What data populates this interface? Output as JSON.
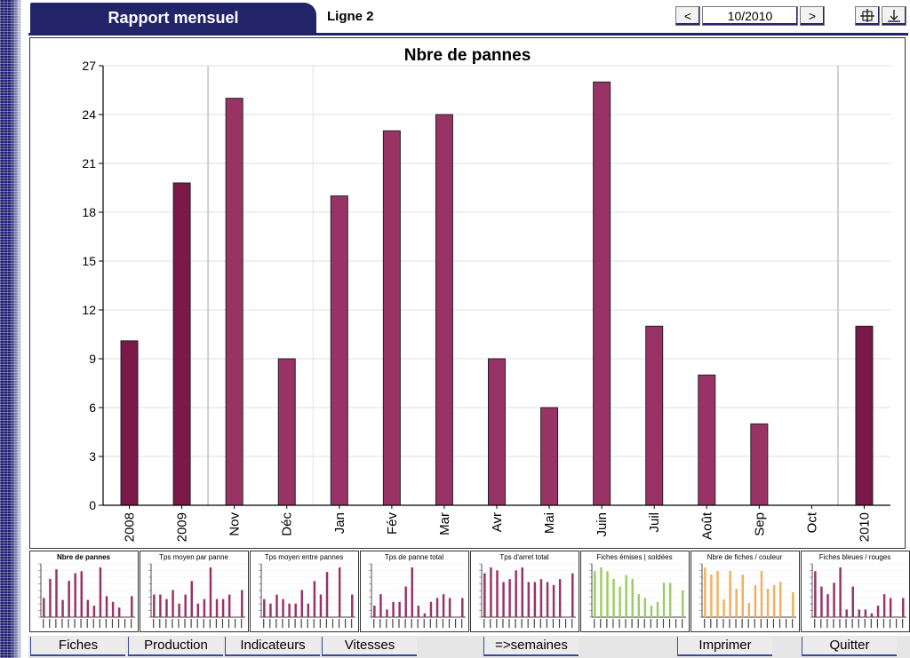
{
  "header": {
    "title": "Rapport mensuel",
    "line": "Ligne 2",
    "prev_label": "<",
    "period": "10/2010",
    "next_label": ">",
    "move_icon": "move-crosshair-icon",
    "download_icon": "download-arrow-icon"
  },
  "colors": {
    "accent": "#23236a",
    "bar_dark": "#7a1848",
    "bar": "#993366",
    "green": "#9ccc65",
    "orange": "#f0b060"
  },
  "chart_data": {
    "type": "bar",
    "title": "Nbre de pannes",
    "categories": [
      "2008",
      "2009",
      "Nov",
      "Déc",
      "Jan",
      "Fév",
      "Mar",
      "Avr",
      "Mai",
      "Juin",
      "Juil",
      "Août",
      "Sep",
      "Oct",
      "2010"
    ],
    "values": [
      10.1,
      19.8,
      25,
      9,
      19,
      23,
      24,
      9,
      6,
      26,
      11,
      8,
      5,
      0,
      11
    ],
    "annual": [
      true,
      true,
      false,
      false,
      false,
      false,
      false,
      false,
      false,
      false,
      false,
      false,
      false,
      false,
      true
    ],
    "ylim": [
      0,
      27
    ],
    "yticks": [
      0,
      3,
      6,
      9,
      12,
      15,
      18,
      21,
      24,
      27
    ],
    "grid": true
  },
  "thumbnails": [
    {
      "title": "Nbre de pannes",
      "bold": true,
      "color": "#993366",
      "values": [
        10,
        20,
        25,
        9,
        19,
        23,
        24,
        9,
        6,
        26,
        11,
        8,
        5,
        0,
        11
      ]
    },
    {
      "title": "Tps moyen par panne",
      "bold": false,
      "color": "#993366",
      "values": [
        5,
        5,
        4,
        6,
        3,
        5,
        8,
        3,
        4,
        11,
        4,
        4,
        5,
        0,
        6
      ]
    },
    {
      "title": "Tps moyen entre pannes",
      "bold": false,
      "color": "#993366",
      "values": [
        4,
        3,
        5,
        4,
        3,
        3,
        6,
        3,
        8,
        5,
        10,
        0,
        11,
        0,
        5
      ]
    },
    {
      "title": "Tps de panne total",
      "bold": false,
      "color": "#993366",
      "values": [
        3,
        6,
        2,
        4,
        4,
        8,
        13,
        3,
        1,
        4,
        5,
        6,
        5,
        0,
        5
      ]
    },
    {
      "title": "Tps d'arret total",
      "bold": false,
      "color": "#993366",
      "values": [
        15,
        17,
        16,
        12,
        13,
        16,
        17,
        12,
        12,
        13,
        12,
        11,
        13,
        0,
        15
      ]
    },
    {
      "title": "Fiches émises | soldées",
      "bold": false,
      "color": "#9ccc65",
      "values": [
        12,
        13,
        12,
        10,
        8,
        11,
        10,
        6,
        5,
        3,
        4,
        9,
        9,
        0,
        7
      ]
    },
    {
      "title": "Nbre de fiches / couleur",
      "bold": false,
      "color": "#f0b060",
      "values": [
        14,
        12,
        13,
        5,
        13,
        8,
        12,
        4,
        9,
        13,
        8,
        9,
        10,
        0,
        7
      ]
    },
    {
      "title": "Fiches bleues / rouges",
      "bold": false,
      "color": "#993366",
      "values": [
        12,
        8,
        6,
        9,
        13,
        2,
        8,
        2,
        2,
        1,
        3,
        6,
        5,
        0,
        5
      ]
    }
  ],
  "bottom_buttons": [
    "Fiches",
    "Production",
    "Indicateurs",
    "Vitesses",
    "=>semaines",
    "Imprimer",
    "Quitter"
  ]
}
